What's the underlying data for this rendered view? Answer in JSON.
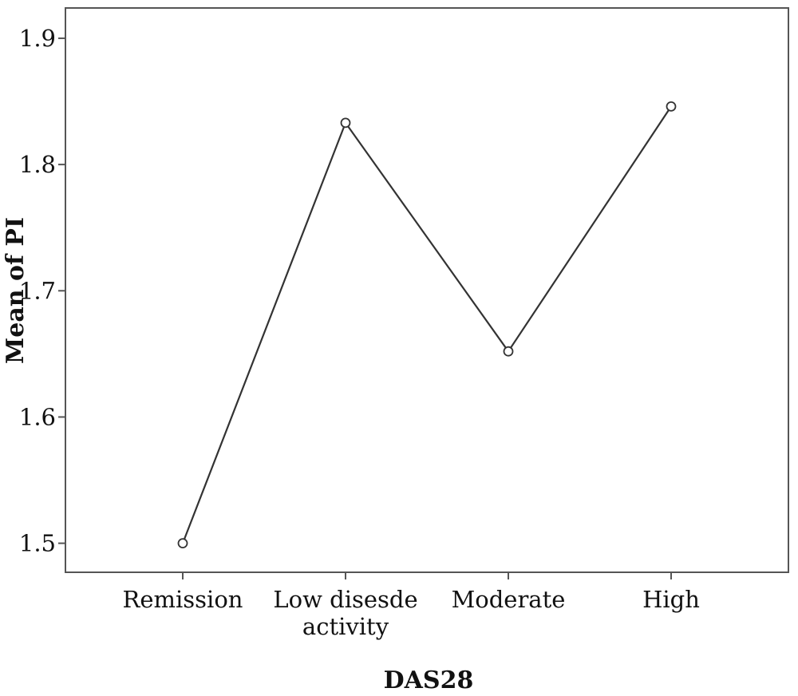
{
  "chart_data": {
    "type": "line",
    "title": "",
    "xlabel": "DAS28",
    "ylabel": "Mean of PI",
    "categories": [
      [
        "Remission"
      ],
      [
        "Low disesde",
        "activity"
      ],
      [
        "Moderate"
      ],
      [
        "High"
      ]
    ],
    "values": [
      1.5,
      1.833,
      1.652,
      1.846
    ],
    "ylim": [
      1.477,
      1.924
    ],
    "yticks": [
      "1.5",
      "1.6",
      "1.7",
      "1.8",
      "1.9"
    ],
    "grid": false,
    "legend": "none",
    "line_color": "#333333",
    "marker": "open-circle"
  }
}
